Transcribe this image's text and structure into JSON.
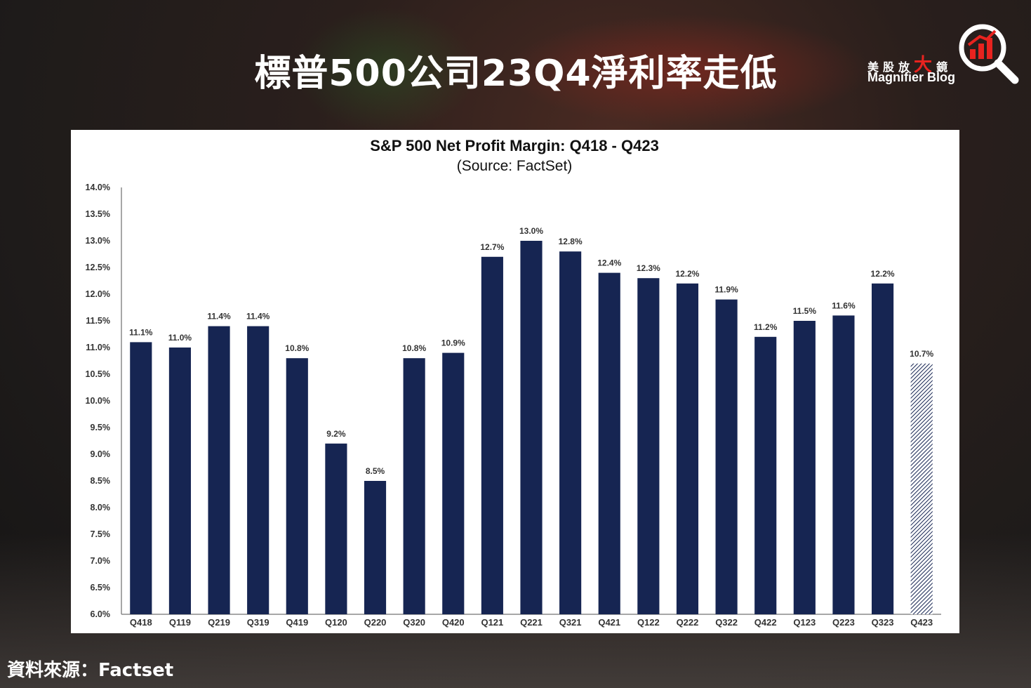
{
  "page": {
    "title": "標普500公司23Q4淨利率走低",
    "footer": "資料來源：Factset"
  },
  "logo": {
    "cn_chars": [
      "美",
      "股",
      "放",
      "大",
      "鏡"
    ],
    "en": "Magnifier Blog",
    "accent_color": "#e8231f",
    "icon": "magnifier-bar-chart-icon"
  },
  "colors": {
    "bar": "#162552",
    "estimate_bar": "#9aa3bd",
    "axis": "#8a8a8a"
  },
  "chart_data": {
    "type": "bar",
    "title": "S&P 500 Net Profit Margin: Q418 - Q423",
    "subtitle": "(Source: FactSet)",
    "xlabel": "",
    "ylabel": "",
    "ylim": [
      6.0,
      14.0
    ],
    "ytick_step": 0.5,
    "ytick_format": "percent_1dp",
    "grid": false,
    "legend": "none",
    "categories": [
      "Q418",
      "Q119",
      "Q219",
      "Q319",
      "Q419",
      "Q120",
      "Q220",
      "Q320",
      "Q420",
      "Q121",
      "Q221",
      "Q321",
      "Q421",
      "Q122",
      "Q222",
      "Q322",
      "Q422",
      "Q123",
      "Q223",
      "Q323",
      "Q423"
    ],
    "values": [
      11.1,
      11.0,
      11.4,
      11.4,
      10.8,
      9.2,
      8.5,
      10.8,
      10.9,
      12.7,
      13.0,
      12.8,
      12.4,
      12.3,
      12.2,
      11.9,
      11.2,
      11.5,
      11.6,
      12.2,
      10.7
    ],
    "labels": [
      "11.1%",
      "11.0%",
      "11.4%",
      "11.4%",
      "10.8%",
      "9.2%",
      "8.5%",
      "10.8%",
      "10.9%",
      "12.7%",
      "13.0%",
      "12.8%",
      "12.4%",
      "12.3%",
      "12.2%",
      "11.9%",
      "11.2%",
      "11.5%",
      "11.6%",
      "12.2%",
      "10.7%"
    ],
    "estimated": [
      "Q423"
    ]
  }
}
